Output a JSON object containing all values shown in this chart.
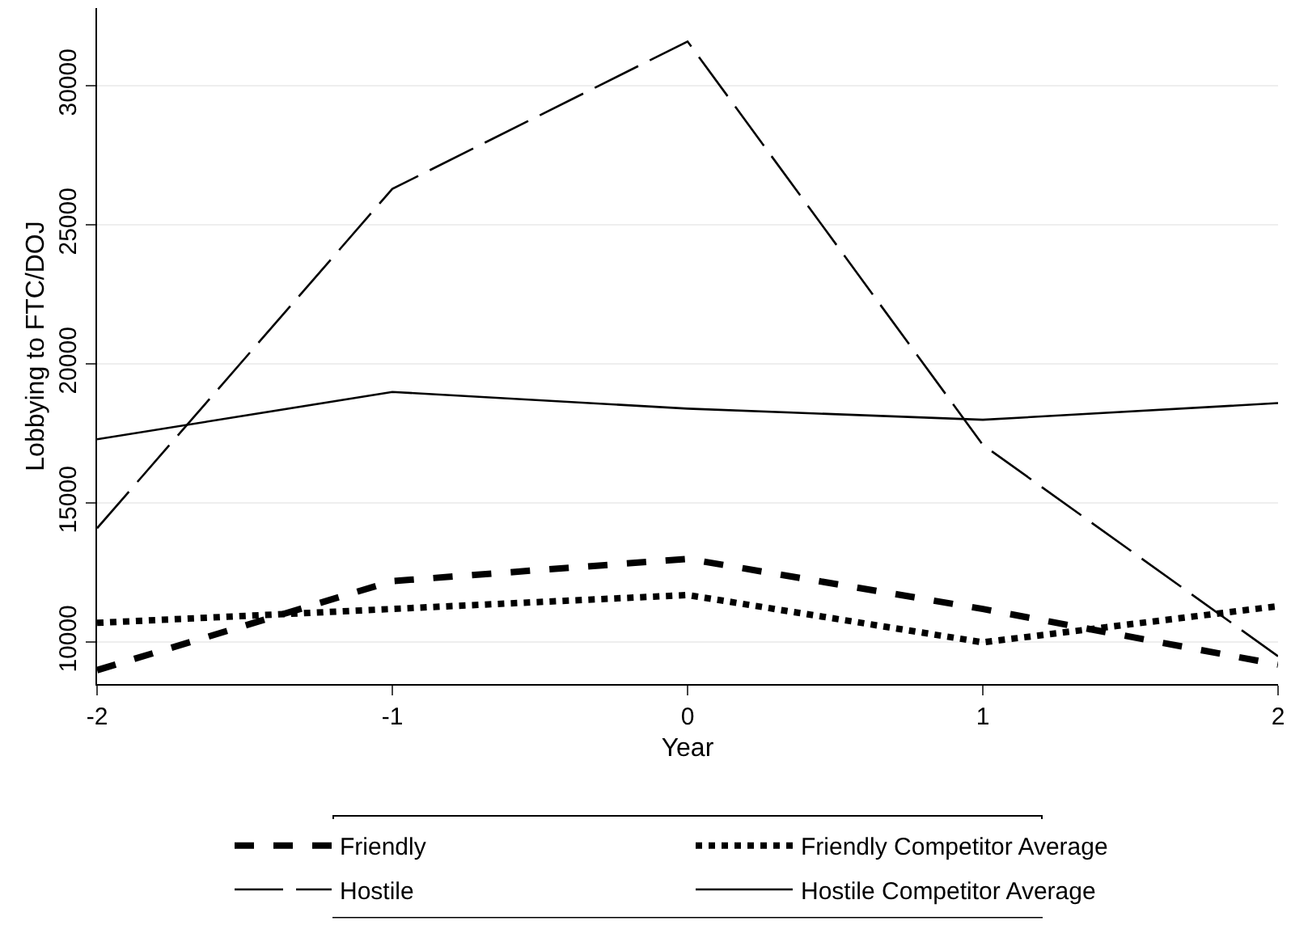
{
  "chart_data": {
    "type": "line",
    "xlabel": "Year",
    "ylabel": "Lobbying to FTC/DOJ",
    "x": [
      -2,
      -1,
      0,
      1,
      2
    ],
    "xlim": [
      -2,
      2
    ],
    "xticks": [
      -2,
      -1,
      0,
      1,
      2
    ],
    "ylim": [
      8500,
      32800
    ],
    "yticks": [
      10000,
      15000,
      20000,
      25000,
      30000
    ],
    "grid": "y",
    "legend": "bottom",
    "series": [
      {
        "name": "Friendly",
        "color": "#000000",
        "line_style": "dashed",
        "values": [
          9000,
          12200,
          13000,
          11200,
          9200
        ]
      },
      {
        "name": "Friendly Competitor Average",
        "color": "#000000",
        "line_style": "dotted",
        "values": [
          10700,
          11200,
          11700,
          10000,
          11300
        ]
      },
      {
        "name": "Hostile",
        "color": "#000000",
        "line_style": "dashed",
        "values": [
          14100,
          26300,
          31600,
          17100,
          9500
        ]
      },
      {
        "name": "Hostile Competitor Average",
        "color": "#000000",
        "line_style": "solid",
        "values": [
          17300,
          19000,
          18400,
          18000,
          18600
        ]
      }
    ]
  }
}
